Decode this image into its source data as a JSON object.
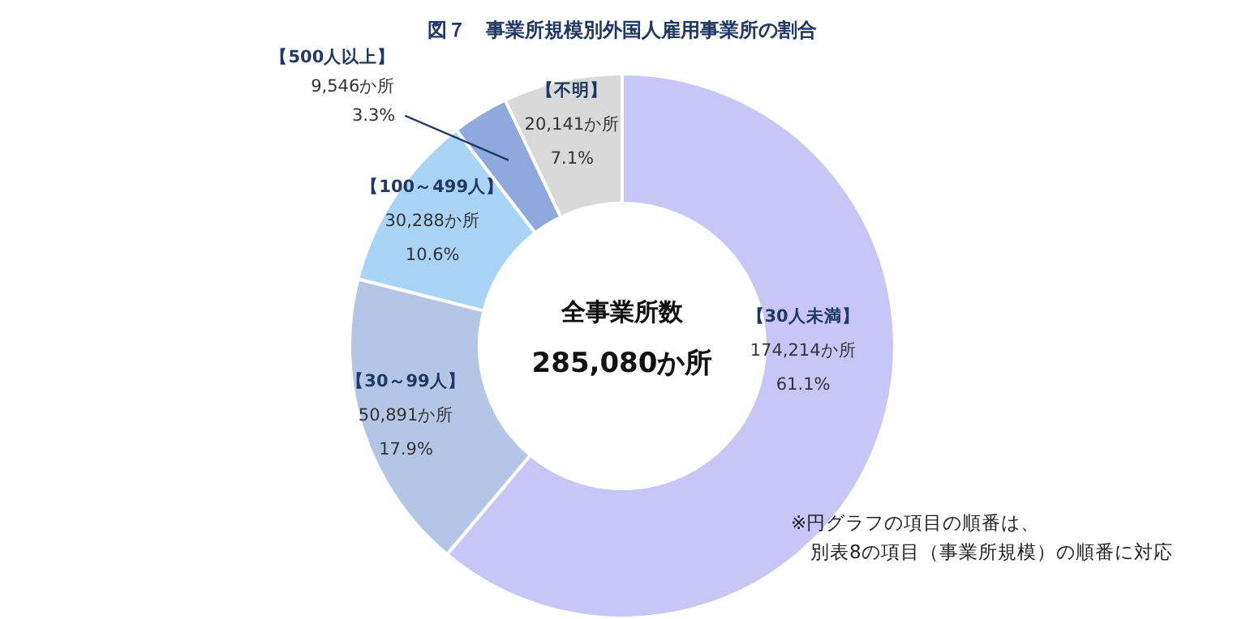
{
  "chart_data": {
    "type": "donut",
    "title": "図７　事業所規模別外国人雇用事業所の割合",
    "categories": [
      "【30人未満】",
      "【30～99人】",
      "【100～499人】",
      "【500人以上】",
      "【不明】"
    ],
    "values": [
      174214,
      50891,
      30288,
      9546,
      20141
    ],
    "colors": [
      "#c8c6f7",
      "#b3c6e6",
      "#a9d3f7",
      "#8fa8dd",
      "#d9d9d9"
    ],
    "value_labels": [
      "174,214か所\n61.1%",
      "50,891か所\n17.9%",
      "30,288か所\n10.6%",
      "9,546か所\n3.3%",
      "20,141か所\n7.1%"
    ],
    "annotations": [
      "全事業所数",
      "285,080か所",
      "※円グラフの項目の順番は、",
      "別表8の項目（事業所規模）の順番に対応"
    ]
  }
}
